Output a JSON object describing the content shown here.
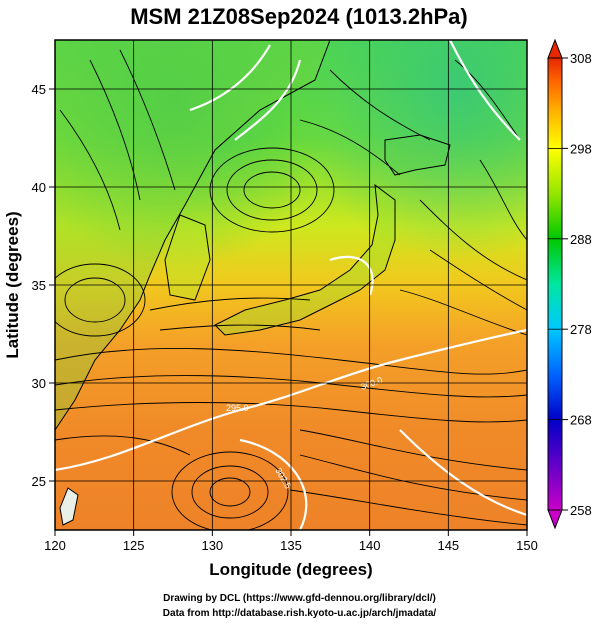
{
  "chart_data": {
    "type": "heatmap",
    "title": "MSM 21Z08Sep2024 (1013.2hPa)",
    "xlabel": "Longitude (degrees)",
    "ylabel": "Latitude  (degrees)",
    "xlim": [
      120,
      150
    ],
    "ylim": [
      22.5,
      47.5
    ],
    "xticks": [
      120,
      125,
      130,
      135,
      140,
      145,
      150
    ],
    "yticks": [
      25,
      30,
      35,
      40,
      45
    ],
    "colorbar": {
      "min": 258,
      "max": 308,
      "ticks": [
        258,
        268,
        278,
        288,
        298,
        308
      ],
      "extend": "both",
      "colors": [
        "#c800c8",
        "#0000c8",
        "#0064ff",
        "#00c8ff",
        "#00e6a0",
        "#00c800",
        "#96e600",
        "#ffff00",
        "#ffb400",
        "#ff6400",
        "#e62800"
      ]
    },
    "field": "temperature (K) at 1013.2 hPa with streamlines",
    "contour_labels": [
      "295.0",
      "300.0",
      "302.5"
    ]
  },
  "footer": {
    "line1": "Drawing by DCL (https://www.gfd-dennou.org/library/dcl/)",
    "line2": "Data from http://database.rish.kyoto-u.ac.jp/arch/jmadata/"
  }
}
